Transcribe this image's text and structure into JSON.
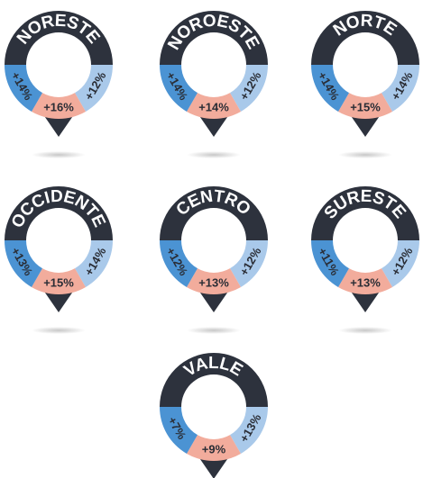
{
  "pins": [
    {
      "name": "NORESTE",
      "left": "+14%",
      "bottom": "+16%",
      "right": "+12%"
    },
    {
      "name": "NOROESTE",
      "left": "+14%",
      "bottom": "+14%",
      "right": "+12%"
    },
    {
      "name": "NORTE",
      "left": "+14%",
      "bottom": "+15%",
      "right": "+14%"
    },
    {
      "name": "OCCIDENTE",
      "left": "+13%",
      "bottom": "+15%",
      "right": "+14%"
    },
    {
      "name": "CENTRO",
      "left": "+12%",
      "bottom": "+13%",
      "right": "+12%"
    },
    {
      "name": "SURESTE",
      "left": "+11%",
      "bottom": "+13%",
      "right": "+12%"
    },
    {
      "name": "VALLE",
      "left": "+7%",
      "bottom": "+9%",
      "right": "+13%"
    }
  ]
}
